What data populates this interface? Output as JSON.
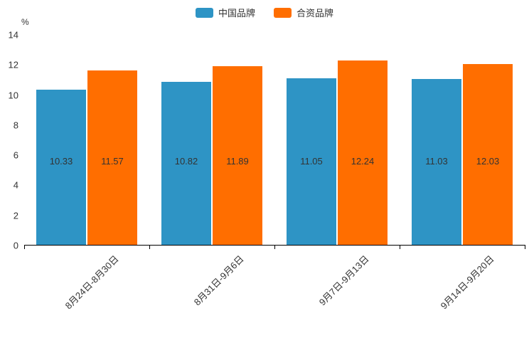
{
  "chart_data": {
    "type": "bar",
    "title": "",
    "unit_label": "%",
    "categories": [
      "8月24日-8月30日",
      "8月31日-9月6日",
      "9月7日-9月13日",
      "9月14日-9月20日"
    ],
    "series": [
      {
        "name": "中国品牌",
        "color": "#2E94C5",
        "values": [
          10.33,
          10.82,
          11.05,
          11.03
        ]
      },
      {
        "name": "合资品牌",
        "color": "#FF6E00",
        "values": [
          11.57,
          11.89,
          12.24,
          12.03
        ]
      }
    ],
    "ylim": [
      0,
      14
    ],
    "ytick_step": 2,
    "yticks": [
      0,
      2,
      4,
      6,
      8,
      10,
      12,
      14
    ],
    "grid": false,
    "legend_position": "top",
    "axis_color": "#000000",
    "text_color": "#333333"
  }
}
